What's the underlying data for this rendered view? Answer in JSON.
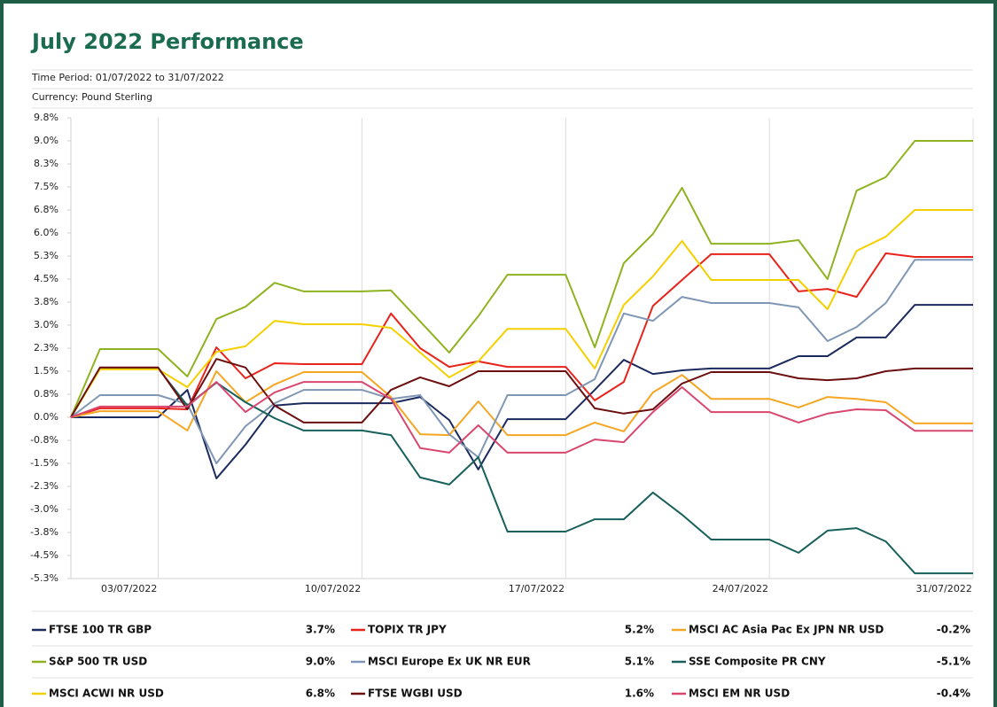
{
  "chart_data": {
    "type": "line",
    "title": "July 2022 Performance",
    "subtitle": "Time Period: 01/07/2022 to 31/07/2022",
    "note": "Currency: Pound Sterling",
    "categories": [
      null,
      null,
      null,
      "03/07/2022",
      null,
      null,
      null,
      null,
      null,
      null,
      "10/07/2022",
      null,
      null,
      null,
      null,
      null,
      null,
      "17/07/2022",
      null,
      null,
      null,
      null,
      null,
      null,
      "24/07/2022",
      null,
      null,
      null,
      null,
      null,
      null,
      "31/07/2022"
    ],
    "ylim": [
      -5.25,
      9.75
    ],
    "yticks": [
      {
        "value": 9.75,
        "label": "9.8%"
      },
      {
        "value": 9.0,
        "label": "9.0%"
      },
      {
        "value": 8.25,
        "label": "8.3%"
      },
      {
        "value": 7.5,
        "label": "7.5%"
      },
      {
        "value": 6.75,
        "label": "6.8%"
      },
      {
        "value": 6.0,
        "label": "6.0%"
      },
      {
        "value": 5.25,
        "label": "5.3%"
      },
      {
        "value": 4.5,
        "label": "4.5%"
      },
      {
        "value": 3.75,
        "label": "3.8%"
      },
      {
        "value": 3.0,
        "label": "3.0%"
      },
      {
        "value": 2.25,
        "label": "2.3%"
      },
      {
        "value": 1.5,
        "label": "1.5%"
      },
      {
        "value": 0.75,
        "label": "0.8%"
      },
      {
        "value": 0,
        "label": "0.0%"
      },
      {
        "value": -0.75,
        "label": "-0.8%"
      },
      {
        "value": -1.5,
        "label": "-1.5%"
      },
      {
        "value": -2.25,
        "label": "-2.3%"
      },
      {
        "value": -3.0,
        "label": "-3.0%"
      },
      {
        "value": -3.75,
        "label": "-3.8%"
      },
      {
        "value": -4.5,
        "label": "-4.5%"
      },
      {
        "value": -5.25,
        "label": "-5.3%"
      }
    ],
    "grid": true,
    "series": [
      {
        "name": "FTSE 100 TR GBP",
        "return_label": "3.7%",
        "color": "#1b2a5e",
        "values": [
          0,
          0,
          0,
          0,
          0.89,
          -1.99,
          -0.89,
          0.38,
          0.46,
          0.46,
          0.46,
          0.46,
          0.66,
          -0.09,
          -1.7,
          -0.06,
          -0.06,
          -0.06,
          0.89,
          1.87,
          1.41,
          1.53,
          1.59,
          1.59,
          1.59,
          1.99,
          1.99,
          2.6,
          2.6,
          3.66,
          3.66,
          3.66
        ]
      },
      {
        "name": "TOPIX TR JPY",
        "return_label": "5.2%",
        "color": "#e8231b",
        "values": [
          0,
          0.29,
          0.29,
          0.29,
          0.26,
          2.28,
          1.27,
          1.76,
          1.73,
          1.73,
          1.73,
          3.38,
          2.25,
          1.64,
          1.82,
          1.64,
          1.64,
          1.64,
          0.55,
          1.15,
          3.63,
          4.47,
          5.31,
          5.31,
          5.31,
          4.1,
          4.18,
          3.92,
          5.34,
          5.22,
          5.22,
          5.22
        ]
      },
      {
        "name": "MSCI AC Asia Pac Ex JPN NR USD",
        "return_label": "-0.2%",
        "color": "#f5a623",
        "values": [
          0,
          0.2,
          0.2,
          0.2,
          -0.43,
          1.5,
          0.49,
          1.07,
          1.47,
          1.47,
          1.47,
          0.66,
          -0.55,
          -0.58,
          0.52,
          -0.58,
          -0.58,
          -0.58,
          -0.17,
          -0.46,
          0.81,
          1.38,
          0.6,
          0.6,
          0.6,
          0.32,
          0.66,
          0.6,
          0.49,
          -0.2,
          -0.2,
          -0.2
        ]
      },
      {
        "name": "S&P 500 TR USD",
        "return_label": "9.0%",
        "color": "#8fb320",
        "values": [
          0,
          2.22,
          2.22,
          2.22,
          1.33,
          3.2,
          3.6,
          4.38,
          4.1,
          4.1,
          4.1,
          4.13,
          3.12,
          2.11,
          3.29,
          4.64,
          4.64,
          4.64,
          2.28,
          5.02,
          5.97,
          7.47,
          5.65,
          5.65,
          5.65,
          5.77,
          4.5,
          7.38,
          7.82,
          9.0,
          9.0,
          9.0
        ]
      },
      {
        "name": "MSCI Europe Ex UK NR EUR",
        "return_label": "5.1%",
        "color": "#7f97b5",
        "values": [
          0,
          0.72,
          0.72,
          0.72,
          0.43,
          -1.5,
          -0.29,
          0.46,
          0.89,
          0.89,
          0.89,
          0.6,
          0.72,
          -0.55,
          -1.3,
          0.72,
          0.72,
          0.72,
          1.24,
          3.38,
          3.14,
          3.92,
          3.72,
          3.72,
          3.72,
          3.58,
          2.48,
          2.94,
          3.72,
          5.13,
          5.13,
          5.13
        ]
      },
      {
        "name": "SSE Composite PR CNY",
        "return_label": "-5.1%",
        "color": "#17605b",
        "values": [
          0,
          1.59,
          1.59,
          1.59,
          0.38,
          1.13,
          0.49,
          -0.03,
          -0.43,
          -0.43,
          -0.43,
          -0.58,
          -1.96,
          -2.19,
          -1.3,
          -3.72,
          -3.72,
          -3.72,
          -3.32,
          -3.32,
          -2.45,
          -3.17,
          -3.98,
          -3.98,
          -3.98,
          -4.41,
          -3.69,
          -3.61,
          -4.04,
          -5.08,
          -5.08,
          -5.08
        ]
      },
      {
        "name": "MSCI ACWI NR USD",
        "return_label": "6.8%",
        "color": "#f5d000",
        "values": [
          0,
          1.56,
          1.56,
          1.56,
          0.98,
          2.13,
          2.31,
          3.14,
          3.03,
          3.03,
          3.03,
          2.91,
          2.11,
          1.3,
          1.82,
          2.88,
          2.88,
          2.88,
          1.59,
          3.66,
          4.59,
          5.74,
          4.47,
          4.47,
          4.47,
          4.47,
          3.52,
          5.42,
          5.88,
          6.75,
          6.75,
          6.75
        ]
      },
      {
        "name": "FTSE WGBI USD",
        "return_label": "1.6%",
        "color": "#6b0f0f",
        "values": [
          0,
          1.62,
          1.62,
          1.62,
          0.26,
          1.9,
          1.62,
          0.38,
          -0.17,
          -0.17,
          -0.17,
          0.89,
          1.3,
          1.01,
          1.5,
          1.5,
          1.5,
          1.5,
          0.29,
          0.12,
          0.26,
          1.1,
          1.47,
          1.47,
          1.47,
          1.27,
          1.21,
          1.27,
          1.5,
          1.59,
          1.59,
          1.59
        ]
      },
      {
        "name": "MSCI EM NR USD",
        "return_label": "-0.4%",
        "color": "#d9466f",
        "values": [
          0,
          0.35,
          0.35,
          0.35,
          0.35,
          1.15,
          0.17,
          0.81,
          1.15,
          1.15,
          1.15,
          0.6,
          -1.0,
          -1.15,
          -0.26,
          -1.15,
          -1.15,
          -1.15,
          -0.72,
          -0.81,
          0.17,
          0.98,
          0.17,
          0.17,
          0.17,
          -0.17,
          0.12,
          0.26,
          0.23,
          -0.44,
          -0.44,
          -0.44
        ]
      }
    ]
  }
}
